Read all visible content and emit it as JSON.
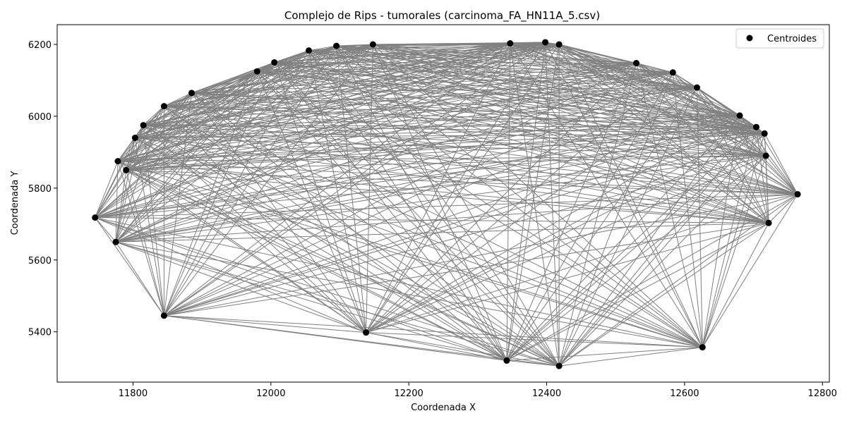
{
  "chart_data": {
    "type": "scatter",
    "title": "Complejo de Rips - tumorales (carcinoma_FA_HN11A_5.csv)",
    "xlabel": "Coordenada X",
    "ylabel": "Coordenada Y",
    "xlim": [
      11690,
      12810
    ],
    "ylim": [
      5260,
      6255
    ],
    "xticks": [
      11800,
      12000,
      12200,
      12400,
      12600,
      12800
    ],
    "yticks": [
      5400,
      5600,
      5800,
      6000,
      6200
    ],
    "xtick_labels": [
      "11800",
      "12000",
      "12200",
      "12400",
      "12600",
      "12800"
    ],
    "ytick_labels": [
      "5400",
      "5600",
      "5800",
      "6000",
      "6200"
    ],
    "grid": false,
    "legend": {
      "position": "top-right",
      "entries": [
        "Centroides"
      ]
    },
    "point_color": "#000000",
    "edge_color": "#808080",
    "series": [
      {
        "name": "Centroides",
        "points": [
          [
            11745,
            5718
          ],
          [
            11775,
            5650
          ],
          [
            11778,
            5875
          ],
          [
            11790,
            5850
          ],
          [
            11803,
            5940
          ],
          [
            11815,
            5975
          ],
          [
            11845,
            5445
          ],
          [
            11845,
            6028
          ],
          [
            11885,
            6065
          ],
          [
            11980,
            6125
          ],
          [
            12005,
            6150
          ],
          [
            12055,
            6183
          ],
          [
            12095,
            6196
          ],
          [
            12148,
            6200
          ],
          [
            12138,
            5398
          ],
          [
            12342,
            5320
          ],
          [
            12347,
            6203
          ],
          [
            12398,
            6206
          ],
          [
            12418,
            5305
          ],
          [
            12418,
            6200
          ],
          [
            12530,
            6148
          ],
          [
            12583,
            6122
          ],
          [
            12618,
            6080
          ],
          [
            12626,
            5357
          ],
          [
            12680,
            6002
          ],
          [
            12704,
            5970
          ],
          [
            12716,
            5952
          ],
          [
            12718,
            5890
          ],
          [
            12722,
            5703
          ],
          [
            12764,
            5783
          ]
        ]
      }
    ]
  }
}
